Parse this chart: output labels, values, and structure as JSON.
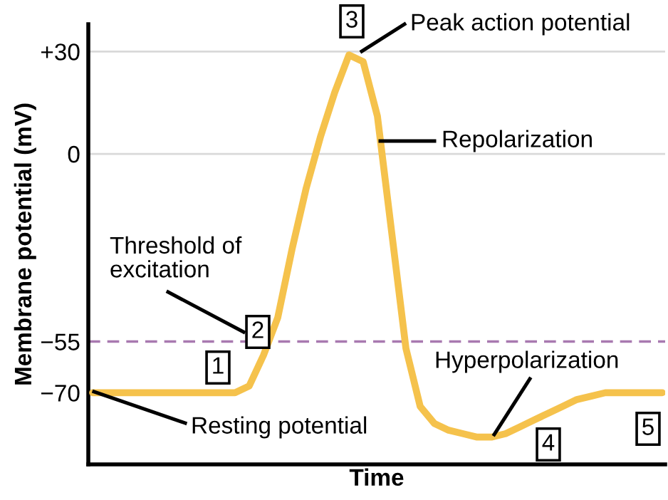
{
  "chart_data": {
    "type": "line",
    "xlabel": "Time",
    "ylabel": "Membrane potential (mV)",
    "categories": [
      null,
      null,
      null,
      null,
      null,
      null,
      null,
      null,
      null,
      null,
      null,
      null,
      null,
      null,
      null,
      null,
      null,
      null,
      null,
      null,
      null,
      null,
      null,
      null,
      null,
      null,
      null,
      null,
      null,
      null,
      null,
      null,
      null,
      null,
      null,
      null,
      null,
      null,
      null,
      null,
      null
    ],
    "series": [
      {
        "color": "#f5c24c",
        "values": [
          -70,
          -70,
          -70,
          -70,
          -70,
          -70,
          -70,
          -70,
          -70,
          -70,
          -70,
          -68,
          -59,
          -48,
          -28,
          -10,
          5,
          18,
          29,
          27,
          11,
          -23,
          -57,
          -74,
          -79,
          -81,
          -82,
          -83,
          -83,
          -82,
          -80,
          -78,
          -76,
          -74,
          -72,
          -71,
          -70,
          -70,
          -70,
          -70,
          -70
        ]
      }
    ],
    "ylim": [
      -91,
      38
    ],
    "yticks": [
      {
        "value": 30,
        "label": "+30"
      },
      0,
      {
        "value": -55,
        "label": "−55"
      },
      {
        "value": -70,
        "label": "−70"
      }
    ],
    "tick_labels": "y",
    "ref_lines": [
      {
        "axis": "y",
        "value": 30,
        "color": "#d9d9d9",
        "line_style": "solid"
      },
      {
        "axis": "y",
        "value": 0,
        "color": "#d9d9d9",
        "line_style": "solid"
      },
      {
        "axis": "y",
        "value": -55,
        "color": "#a879b0",
        "line_style": "dashed"
      }
    ],
    "annotations": [
      "Peak action potential",
      "Repolarization",
      "Threshold of\nexcitation",
      "Resting potential",
      "Hyperpolarization",
      "1",
      "2",
      "3",
      "4",
      "5"
    ]
  }
}
